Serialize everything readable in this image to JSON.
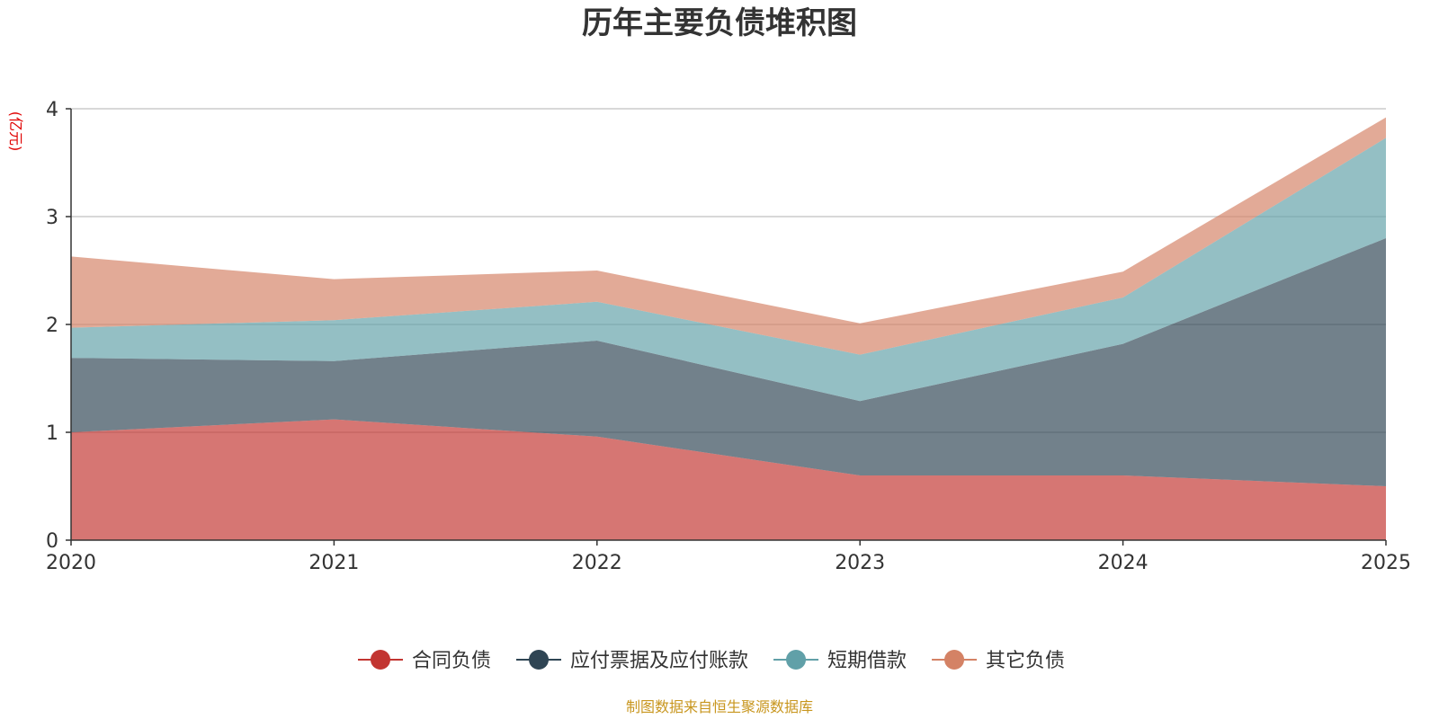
{
  "chart_data": {
    "type": "area",
    "stacked": true,
    "title": "历年主要负债堆积图",
    "unit_label": "(亿元)",
    "x": [
      "2020",
      "2021",
      "2022",
      "2023",
      "2024",
      "2025"
    ],
    "ylim": [
      0,
      4
    ],
    "yticks": [
      "0",
      "1",
      "2",
      "3",
      "4"
    ],
    "grid": true,
    "legend_position": "bottom-center",
    "series": [
      {
        "name": "合同负债",
        "color": "#c23531",
        "values": [
          1.0,
          1.12,
          0.96,
          0.6,
          0.6,
          0.5
        ]
      },
      {
        "name": "应付票据及应付账款",
        "color": "#2f4554",
        "values": [
          0.69,
          0.54,
          0.89,
          0.69,
          1.22,
          2.3
        ]
      },
      {
        "name": "短期借款",
        "color": "#61a0a8",
        "values": [
          0.28,
          0.38,
          0.36,
          0.43,
          0.43,
          0.93
        ]
      },
      {
        "name": "其它负债",
        "color": "#d48265",
        "values": [
          0.66,
          0.38,
          0.29,
          0.29,
          0.24,
          0.19
        ]
      }
    ],
    "source_note": "制图数据来自恒生聚源数据库"
  },
  "colors": {
    "unit_label": "#e00000",
    "source_note": "#c8961e",
    "axis": "#333333",
    "grid": "#cccccc"
  }
}
